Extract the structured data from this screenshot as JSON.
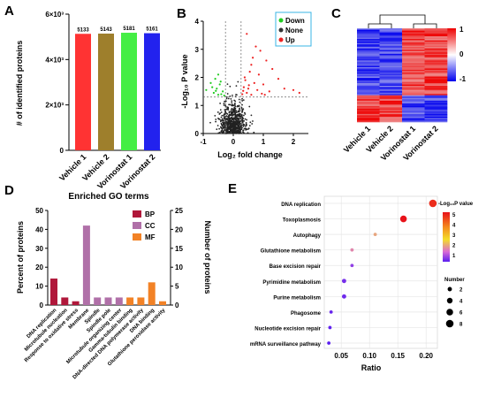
{
  "panels": {
    "a": "A",
    "b": "B",
    "c": "C",
    "d": "D",
    "e": "E"
  },
  "chart_data": [
    {
      "type": "bar",
      "panel": "A",
      "categories": [
        "Vehicle 1",
        "Vehicle 2",
        "Vorinostat 1",
        "Vorinostat 2"
      ],
      "values": [
        5133,
        5143,
        5181,
        5161
      ],
      "value_labels": [
        "5133",
        "5143",
        "5181",
        "5161"
      ],
      "colors": [
        "#ff3333",
        "#9e7f2c",
        "#44ee44",
        "#2222ee"
      ],
      "ylabel": "# of identified proteins",
      "ylim": [
        0,
        6000
      ],
      "yticks": [
        0,
        2000,
        4000,
        6000
      ],
      "ytick_labels": [
        "0",
        "2×10³",
        "4×10³",
        "6×10³"
      ]
    },
    {
      "type": "scatter",
      "panel": "B",
      "xlabel": "Log₂ fold change",
      "ylabel": "-Log₁₀ P value",
      "xlim": [
        -1,
        2.5
      ],
      "ylim": [
        0,
        4
      ],
      "xticks": [
        -1,
        0,
        1,
        2
      ],
      "xtick_labels": [
        "-1",
        "0",
        "1",
        "2"
      ],
      "yticks": [
        0,
        1,
        2,
        3,
        4
      ],
      "ytick_labels": [
        "0",
        "1",
        "2",
        "3",
        "4"
      ],
      "thresholds": {
        "fold_change": [
          -0.26,
          0.26
        ],
        "p_value_log": 1.3
      },
      "legend": [
        {
          "name": "Down",
          "color": "#22cc22"
        },
        {
          "name": "None",
          "color": "#333333"
        },
        {
          "name": "Up",
          "color": "#ee2222"
        }
      ],
      "legend_position": "top-right",
      "up_points": [
        [
          0.45,
          3.55
        ],
        [
          0.75,
          3.1
        ],
        [
          0.9,
          2.95
        ],
        [
          1.1,
          2.6
        ],
        [
          0.6,
          2.45
        ],
        [
          1.3,
          2.3
        ],
        [
          0.55,
          2.2
        ],
        [
          0.85,
          2.1
        ],
        [
          1.5,
          1.95
        ],
        [
          0.4,
          1.9
        ],
        [
          0.7,
          1.8
        ],
        [
          1.0,
          1.75
        ],
        [
          0.35,
          1.65
        ],
        [
          0.5,
          1.6
        ],
        [
          0.8,
          1.55
        ],
        [
          1.2,
          1.5
        ],
        [
          0.45,
          1.45
        ],
        [
          0.3,
          1.4
        ],
        [
          0.6,
          1.38
        ],
        [
          0.95,
          1.42
        ],
        [
          2.0,
          1.55
        ],
        [
          2.2,
          1.45
        ],
        [
          1.7,
          1.6
        ],
        [
          0.38,
          2.0
        ],
        [
          0.65,
          2.7
        ],
        [
          0.52,
          1.72
        ],
        [
          1.05,
          1.38
        ],
        [
          0.33,
          1.52
        ]
      ],
      "down_points": [
        [
          -0.5,
          2.1
        ],
        [
          -0.6,
          1.95
        ],
        [
          -0.75,
          1.8
        ],
        [
          -0.45,
          1.75
        ],
        [
          -0.55,
          1.6
        ],
        [
          -0.35,
          1.5
        ],
        [
          -0.65,
          1.45
        ],
        [
          -0.4,
          1.4
        ],
        [
          -0.9,
          1.55
        ],
        [
          -0.3,
          1.35
        ],
        [
          -0.5,
          1.38
        ],
        [
          -0.7,
          1.65
        ],
        [
          -0.42,
          1.85
        ],
        [
          -0.58,
          1.52
        ]
      ]
    },
    {
      "type": "heatmap",
      "panel": "C",
      "columns": [
        "Vehicle 1",
        "Vehicle 2",
        "Vorinostat 1",
        "Vorinostat 2"
      ],
      "colorbar": {
        "min": -1,
        "max": 1,
        "ticks": [
          "1",
          "0",
          "-1"
        ],
        "colors": [
          "#0000ee",
          "#ffffff",
          "#ee0000"
        ]
      },
      "block_pattern": [
        {
          "rows_fraction": 0.72,
          "column_signs": [
            -1,
            -1,
            1,
            1
          ]
        },
        {
          "rows_fraction": 0.28,
          "column_signs": [
            1,
            1,
            -1,
            -1
          ]
        }
      ]
    },
    {
      "type": "bar",
      "panel": "D",
      "title": "Enriched GO terms",
      "categories": [
        "DNA replication",
        "Microtubule nucleation",
        "Response to oxidative stress",
        "Membrane",
        "Spindle",
        "Spindle pole",
        "Microtubule organizing center",
        "Gamma-tubulin binding",
        "DNA-directed DNA polymerase activity",
        "DNA binding",
        "Glutathione peroxidase activity"
      ],
      "series_group": [
        "BP",
        "BP",
        "BP",
        "CC",
        "CC",
        "CC",
        "CC",
        "MF",
        "MF",
        "MF",
        "MF"
      ],
      "values_percent": [
        14,
        4,
        2,
        42,
        4,
        4,
        4,
        4,
        4,
        12,
        2
      ],
      "values_count": [
        7,
        2,
        1,
        21,
        2,
        2,
        2,
        2,
        2,
        6,
        1
      ],
      "legend": [
        {
          "name": "BP",
          "color": "#b0173a"
        },
        {
          "name": "CC",
          "color": "#b070a8"
        },
        {
          "name": "MF",
          "color": "#f28226"
        }
      ],
      "ylabel": "Percent of proteins",
      "ylabel_right": "Number of proteins",
      "ylim": [
        0,
        50
      ],
      "ylim_right": [
        0,
        25
      ],
      "yticks": [
        "0",
        "10",
        "20",
        "30",
        "40",
        "50"
      ],
      "yticks_right": [
        "0",
        "5",
        "10",
        "15",
        "20",
        "25"
      ]
    },
    {
      "type": "scatter",
      "panel": "E",
      "xlabel": "Ratio",
      "xlim": [
        0.02,
        0.22
      ],
      "xticks": [
        0.05,
        0.1,
        0.15,
        0.2
      ],
      "xtick_labels": [
        "0.05",
        "0.10",
        "0.15",
        "0.20"
      ],
      "categories": [
        "DNA replication",
        "Toxoplasmosis",
        "Autophagy",
        "Glutathione metabolism",
        "Base excision repair",
        "Pyrimidine metabolism",
        "Purine metabolism",
        "Phagosome",
        "Nucleotide excision repair",
        "mRNA surveillance pathway"
      ],
      "ratio": [
        0.212,
        0.16,
        0.11,
        0.069,
        0.069,
        0.055,
        0.055,
        0.032,
        0.03,
        0.028
      ],
      "number": [
        8,
        6,
        1,
        1,
        1,
        2,
        2,
        1,
        1,
        1
      ],
      "neg_log10_p": [
        5.3,
        5.6,
        2.5,
        2.2,
        1.4,
        1.2,
        1.15,
        1.1,
        1.05,
        1.0
      ],
      "colorbar_title": "-Log₁₀P value",
      "colorbar_ticks": [
        "5",
        "4",
        "3",
        "2",
        "1"
      ],
      "colorbar_range": [
        1,
        5.6
      ],
      "size_legend_title": "Number",
      "size_legend": [
        "2",
        "4",
        "6",
        "8"
      ],
      "size_legend_values": [
        2,
        4,
        6,
        8
      ]
    }
  ]
}
